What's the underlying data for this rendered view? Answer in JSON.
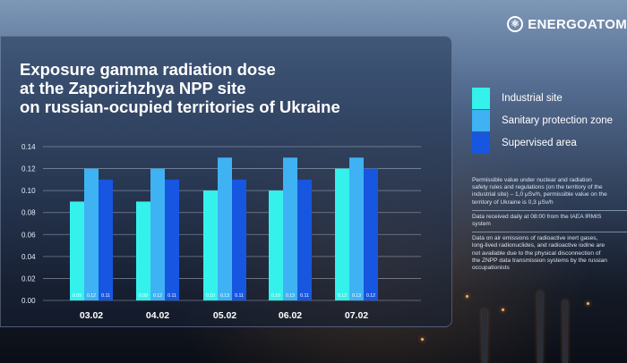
{
  "brand": {
    "name": "ENERGOATOM",
    "icon": "energoatom-logo-icon"
  },
  "title": "Exposure gamma radiation dose\nat the Zaporizhzhya NPP site\non russian-ocupied territories of Ukraine",
  "legend": [
    {
      "label": "Industrial site",
      "color": "#35f1ec"
    },
    {
      "label": "Sanitary protection zone",
      "color": "#3fb2f3"
    },
    {
      "label": "Supervised area",
      "color": "#1756e0"
    }
  ],
  "notes": [
    "Permissible value under nuclear and radiation\nsafety rules and regulations (on the territory of the\nindustrial site) – 1,0 μSv/h, permissible value on the\nterritory of Ukraine is 0,3 μSv/h",
    "Data received daily at 08:00 from the IAEA IRMIS\nsystem",
    "Data on air emissions of radioactive inert gases,\nlong-lived radionuclides, and radioactive iodine are\nnot available due to the physical disconnection of\nthe ZNPP data transmission systems by the russian\noccupationists"
  ],
  "chart_data": {
    "type": "bar",
    "categories": [
      "03.02",
      "04.02",
      "05.02",
      "06.02",
      "07.02"
    ],
    "series": [
      {
        "name": "Industrial site",
        "values": [
          0.09,
          0.09,
          0.1,
          0.1,
          0.12
        ],
        "labels": [
          "0.09",
          "0.09",
          "0.10",
          "0.10",
          "0.12"
        ],
        "color": "#35f1ec"
      },
      {
        "name": "Sanitary protection zone",
        "values": [
          0.12,
          0.12,
          0.13,
          0.13,
          0.13
        ],
        "labels": [
          "0.12",
          "0.12",
          "0.13",
          "0.13",
          "0.13"
        ],
        "color": "#3fb2f3"
      },
      {
        "name": "Supervised area",
        "values": [
          0.11,
          0.11,
          0.11,
          0.11,
          0.12
        ],
        "labels": [
          "0.11",
          "0.11",
          "0.11",
          "0.11",
          "0.12"
        ],
        "color": "#1756e0"
      }
    ],
    "yticks": [
      "0.00",
      "0.02",
      "0.04",
      "0.06",
      "0.08",
      "0.10",
      "0.12",
      "0.14"
    ],
    "ylim": [
      0,
      0.14
    ],
    "grid": true,
    "legend_position": "right"
  }
}
